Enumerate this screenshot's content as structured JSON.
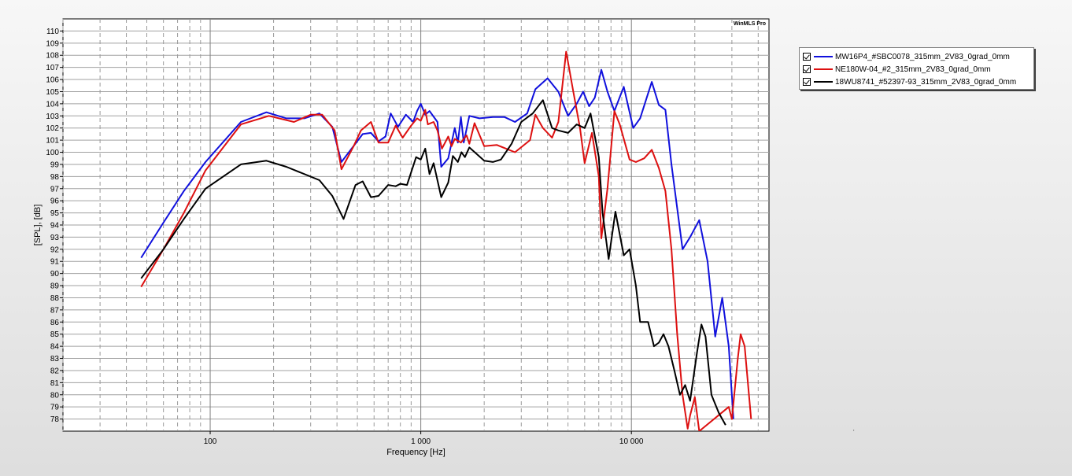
{
  "chart_data": {
    "type": "line",
    "title": "",
    "brand": "WinMLS Pro",
    "xlabel": "Frequency [Hz]",
    "ylabel": "[SPL], [dB]",
    "xscale": "log",
    "xlim": [
      20,
      45000
    ],
    "ylim": [
      77,
      111
    ],
    "x_ticks": [
      {
        "value": 100,
        "label": "100"
      },
      {
        "value": 1000,
        "label": "1 000"
      },
      {
        "value": 10000,
        "label": "10 000"
      }
    ],
    "y_ticks": [
      78,
      79,
      80,
      81,
      82,
      83,
      84,
      85,
      86,
      87,
      88,
      89,
      90,
      91,
      92,
      93,
      94,
      95,
      96,
      97,
      98,
      99,
      100,
      101,
      102,
      103,
      104,
      105,
      106,
      107,
      108,
      109,
      110
    ],
    "grid": true,
    "legend_position": "right",
    "series": [
      {
        "name": "MW16P4_#SBC0078_315mm_2V83_0grad_0mm",
        "color": "#1010dd",
        "points": [
          [
            47,
            91.3
          ],
          [
            60,
            94.2
          ],
          [
            75,
            96.8
          ],
          [
            95,
            99.2
          ],
          [
            140,
            102.5
          ],
          [
            185,
            103.3
          ],
          [
            230,
            102.8
          ],
          [
            280,
            102.8
          ],
          [
            330,
            103.2
          ],
          [
            380,
            102.1
          ],
          [
            420,
            99.2
          ],
          [
            460,
            100.1
          ],
          [
            530,
            101.5
          ],
          [
            580,
            101.6
          ],
          [
            630,
            100.9
          ],
          [
            680,
            101.3
          ],
          [
            720,
            103.2
          ],
          [
            780,
            102.1
          ],
          [
            850,
            103.1
          ],
          [
            920,
            102.5
          ],
          [
            960,
            103.4
          ],
          [
            1000,
            104.0
          ],
          [
            1050,
            103.1
          ],
          [
            1100,
            103.4
          ],
          [
            1200,
            102.5
          ],
          [
            1250,
            98.8
          ],
          [
            1350,
            99.5
          ],
          [
            1450,
            102.0
          ],
          [
            1500,
            100.8
          ],
          [
            1550,
            102.9
          ],
          [
            1600,
            100.8
          ],
          [
            1700,
            103.0
          ],
          [
            1900,
            102.8
          ],
          [
            2200,
            102.9
          ],
          [
            2500,
            102.9
          ],
          [
            2800,
            102.5
          ],
          [
            3200,
            103.2
          ],
          [
            3500,
            105.2
          ],
          [
            4000,
            106.1
          ],
          [
            4500,
            105.0
          ],
          [
            5000,
            103.0
          ],
          [
            5500,
            104.0
          ],
          [
            5900,
            105.0
          ],
          [
            6300,
            103.8
          ],
          [
            6700,
            104.5
          ],
          [
            7200,
            106.8
          ],
          [
            7700,
            105.0
          ],
          [
            8300,
            103.4
          ],
          [
            9200,
            105.4
          ],
          [
            10200,
            102.0
          ],
          [
            11000,
            102.8
          ],
          [
            12500,
            105.8
          ],
          [
            13500,
            103.9
          ],
          [
            14500,
            103.5
          ],
          [
            15500,
            99.0
          ],
          [
            17500,
            92.0
          ],
          [
            19000,
            93.0
          ],
          [
            21000,
            94.4
          ],
          [
            23000,
            91.0
          ],
          [
            25000,
            84.8
          ],
          [
            27000,
            88.0
          ],
          [
            29000,
            84.0
          ],
          [
            30500,
            78.0
          ]
        ]
      },
      {
        "name": "NE180W-04_#2_315mm_2V83_0grad_0mm",
        "color": "#dd1010",
        "points": [
          [
            47,
            88.9
          ],
          [
            60,
            92.0
          ],
          [
            75,
            95.0
          ],
          [
            95,
            98.5
          ],
          [
            140,
            102.3
          ],
          [
            190,
            103.0
          ],
          [
            250,
            102.5
          ],
          [
            300,
            103.1
          ],
          [
            340,
            103.1
          ],
          [
            390,
            101.8
          ],
          [
            420,
            98.6
          ],
          [
            480,
            100.5
          ],
          [
            520,
            101.8
          ],
          [
            580,
            102.5
          ],
          [
            630,
            100.8
          ],
          [
            700,
            100.8
          ],
          [
            760,
            102.2
          ],
          [
            820,
            101.2
          ],
          [
            900,
            102.2
          ],
          [
            960,
            102.8
          ],
          [
            1000,
            102.6
          ],
          [
            1050,
            103.5
          ],
          [
            1080,
            102.3
          ],
          [
            1150,
            102.5
          ],
          [
            1200,
            101.8
          ],
          [
            1260,
            100.3
          ],
          [
            1350,
            101.3
          ],
          [
            1400,
            100.5
          ],
          [
            1450,
            101.1
          ],
          [
            1550,
            100.8
          ],
          [
            1650,
            101.4
          ],
          [
            1700,
            100.7
          ],
          [
            1800,
            102.4
          ],
          [
            2000,
            100.5
          ],
          [
            2300,
            100.6
          ],
          [
            2800,
            100.0
          ],
          [
            3300,
            101.0
          ],
          [
            3500,
            103.1
          ],
          [
            3800,
            102.0
          ],
          [
            4200,
            101.2
          ],
          [
            4500,
            102.5
          ],
          [
            4900,
            108.3
          ],
          [
            5300,
            105.0
          ],
          [
            5700,
            102.0
          ],
          [
            6000,
            99.1
          ],
          [
            6500,
            101.6
          ],
          [
            7000,
            98.0
          ],
          [
            7200,
            92.9
          ],
          [
            7700,
            97.0
          ],
          [
            8300,
            103.4
          ],
          [
            8800,
            102.3
          ],
          [
            9800,
            99.4
          ],
          [
            10500,
            99.2
          ],
          [
            11500,
            99.5
          ],
          [
            12500,
            100.2
          ],
          [
            13500,
            98.7
          ],
          [
            14500,
            96.8
          ],
          [
            15500,
            92.0
          ],
          [
            16500,
            85.0
          ],
          [
            17500,
            80.0
          ],
          [
            18500,
            77.2
          ],
          [
            19000,
            78.3
          ],
          [
            20000,
            79.8
          ],
          [
            21000,
            77.0
          ],
          [
            29000,
            79.0
          ],
          [
            30000,
            78.0
          ],
          [
            32000,
            83.0
          ],
          [
            33000,
            85.0
          ],
          [
            34500,
            84.0
          ],
          [
            37000,
            78.0
          ]
        ]
      },
      {
        "name": "18WU8741_#52397-93_315mm_2V83_0grad_0mm",
        "color": "#000000",
        "points": [
          [
            47,
            89.6
          ],
          [
            60,
            92.0
          ],
          [
            75,
            94.5
          ],
          [
            95,
            97.0
          ],
          [
            140,
            99.0
          ],
          [
            185,
            99.3
          ],
          [
            230,
            98.8
          ],
          [
            330,
            97.7
          ],
          [
            380,
            96.4
          ],
          [
            430,
            94.5
          ],
          [
            490,
            97.3
          ],
          [
            530,
            97.6
          ],
          [
            580,
            96.3
          ],
          [
            630,
            96.4
          ],
          [
            700,
            97.3
          ],
          [
            760,
            97.2
          ],
          [
            800,
            97.4
          ],
          [
            860,
            97.3
          ],
          [
            950,
            99.6
          ],
          [
            1000,
            99.4
          ],
          [
            1050,
            100.3
          ],
          [
            1100,
            98.2
          ],
          [
            1150,
            99.1
          ],
          [
            1250,
            96.3
          ],
          [
            1350,
            97.5
          ],
          [
            1420,
            99.7
          ],
          [
            1500,
            99.2
          ],
          [
            1560,
            100.0
          ],
          [
            1620,
            99.6
          ],
          [
            1700,
            100.4
          ],
          [
            2000,
            99.3
          ],
          [
            2200,
            99.2
          ],
          [
            2400,
            99.4
          ],
          [
            2700,
            100.7
          ],
          [
            3000,
            102.5
          ],
          [
            3400,
            103.2
          ],
          [
            3800,
            104.3
          ],
          [
            4200,
            102.0
          ],
          [
            4500,
            101.8
          ],
          [
            5000,
            101.6
          ],
          [
            5500,
            102.3
          ],
          [
            6000,
            102.0
          ],
          [
            6400,
            103.2
          ],
          [
            7000,
            99.6
          ],
          [
            7300,
            95.0
          ],
          [
            7800,
            91.2
          ],
          [
            8400,
            95.1
          ],
          [
            9200,
            91.5
          ],
          [
            9800,
            92.0
          ],
          [
            10500,
            89.0
          ],
          [
            11000,
            86.0
          ],
          [
            12000,
            86.0
          ],
          [
            12800,
            84.0
          ],
          [
            13500,
            84.3
          ],
          [
            14200,
            85.0
          ],
          [
            15000,
            84.0
          ],
          [
            16000,
            82.0
          ],
          [
            17000,
            80.0
          ],
          [
            18000,
            80.8
          ],
          [
            19000,
            79.5
          ],
          [
            20500,
            83.5
          ],
          [
            21500,
            85.8
          ],
          [
            22500,
            84.8
          ],
          [
            24000,
            80.0
          ],
          [
            26000,
            78.5
          ],
          [
            28000,
            77.5
          ]
        ]
      }
    ]
  },
  "footer_mark": "'"
}
